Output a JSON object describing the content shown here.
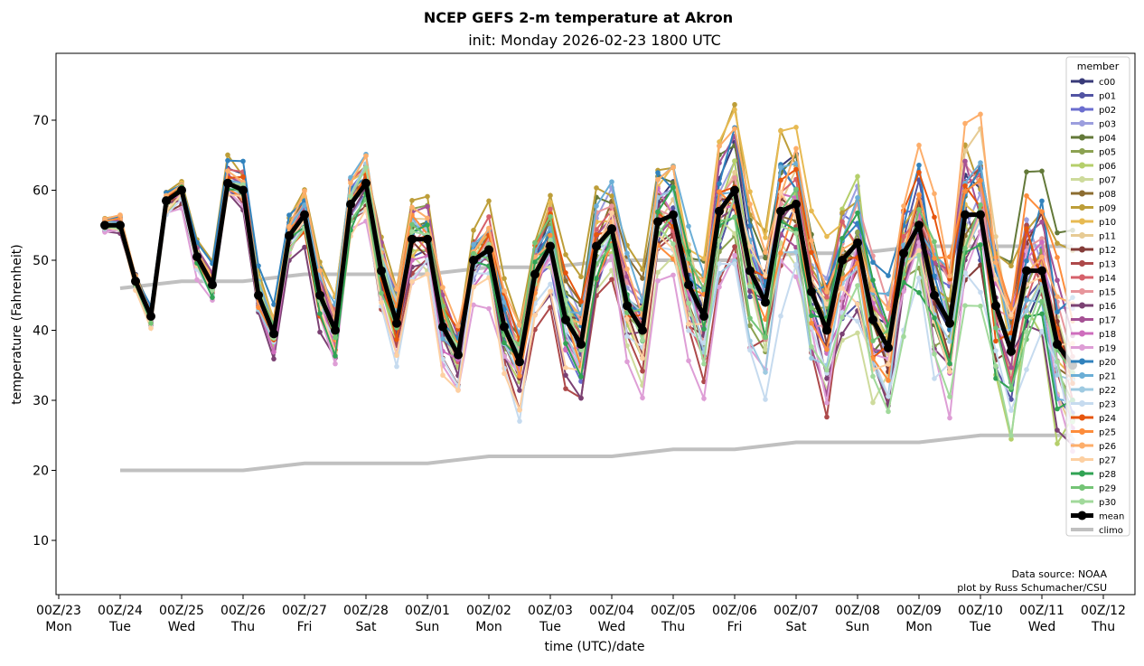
{
  "chart_data": {
    "type": "line",
    "title": "NCEP GEFS 2-m temperature at Akron",
    "subtitle": "init: Monday 2026-02-23 1800 UTC",
    "xlabel": "time (UTC)/date",
    "ylabel": "temperature (Fahrenheit)",
    "ylim": [
      2,
      79.5
    ],
    "xlim_hours": [
      -2,
      464
    ],
    "x_units": "hours since 00Z/23",
    "yticks": [
      10,
      20,
      30,
      40,
      50,
      60,
      70
    ],
    "xticks": [
      {
        "hour": 0,
        "label": "00Z/23",
        "day": "Mon"
      },
      {
        "hour": 24,
        "label": "00Z/24",
        "day": "Tue"
      },
      {
        "hour": 48,
        "label": "00Z/25",
        "day": "Wed"
      },
      {
        "hour": 72,
        "label": "00Z/26",
        "day": "Thu"
      },
      {
        "hour": 96,
        "label": "00Z/27",
        "day": "Fri"
      },
      {
        "hour": 120,
        "label": "00Z/28",
        "day": "Sat"
      },
      {
        "hour": 144,
        "label": "00Z/01",
        "day": "Sun"
      },
      {
        "hour": 168,
        "label": "00Z/02",
        "day": "Mon"
      },
      {
        "hour": 192,
        "label": "00Z/03",
        "day": "Tue"
      },
      {
        "hour": 216,
        "label": "00Z/04",
        "day": "Wed"
      },
      {
        "hour": 240,
        "label": "00Z/05",
        "day": "Thu"
      },
      {
        "hour": 264,
        "label": "00Z/06",
        "day": "Fri"
      },
      {
        "hour": 288,
        "label": "00Z/07",
        "day": "Sat"
      },
      {
        "hour": 312,
        "label": "00Z/08",
        "day": "Sun"
      },
      {
        "hour": 336,
        "label": "00Z/09",
        "day": "Mon"
      },
      {
        "hour": 360,
        "label": "00Z/10",
        "day": "Tue"
      },
      {
        "hour": 384,
        "label": "00Z/11",
        "day": "Wed"
      },
      {
        "hour": 408,
        "label": "00Z/12",
        "day": "Thu"
      }
    ],
    "x_start_hour": 18,
    "x_step_hours": 6,
    "legend": {
      "title": "member",
      "placement": "right"
    },
    "members": [
      {
        "name": "c00",
        "color": "#393b79"
      },
      {
        "name": "p01",
        "color": "#5254a3"
      },
      {
        "name": "p02",
        "color": "#6b6ecf"
      },
      {
        "name": "p03",
        "color": "#9c9ede"
      },
      {
        "name": "p04",
        "color": "#637939"
      },
      {
        "name": "p05",
        "color": "#8ca252"
      },
      {
        "name": "p06",
        "color": "#b5cf6b"
      },
      {
        "name": "p07",
        "color": "#cedb9c"
      },
      {
        "name": "p08",
        "color": "#8c6d31"
      },
      {
        "name": "p09",
        "color": "#bd9e39"
      },
      {
        "name": "p10",
        "color": "#e7ba52"
      },
      {
        "name": "p11",
        "color": "#e7cb94"
      },
      {
        "name": "p12",
        "color": "#843c39"
      },
      {
        "name": "p13",
        "color": "#ad494a"
      },
      {
        "name": "p14",
        "color": "#d6616b"
      },
      {
        "name": "p15",
        "color": "#e7969c"
      },
      {
        "name": "p16",
        "color": "#7b4173"
      },
      {
        "name": "p17",
        "color": "#a55194"
      },
      {
        "name": "p18",
        "color": "#ce6dbd"
      },
      {
        "name": "p19",
        "color": "#de9ed6"
      },
      {
        "name": "p20",
        "color": "#3182bd"
      },
      {
        "name": "p21",
        "color": "#6baed6"
      },
      {
        "name": "p22",
        "color": "#9ecae1"
      },
      {
        "name": "p23",
        "color": "#c6dbef"
      },
      {
        "name": "p24",
        "color": "#e6550d"
      },
      {
        "name": "p25",
        "color": "#fd8d3c"
      },
      {
        "name": "p26",
        "color": "#fdae6b"
      },
      {
        "name": "p27",
        "color": "#fdd0a2"
      },
      {
        "name": "p28",
        "color": "#31a354"
      },
      {
        "name": "p29",
        "color": "#74c476"
      },
      {
        "name": "p30",
        "color": "#a1d99b"
      }
    ],
    "mean": {
      "name": "mean",
      "color": "#000000",
      "values": [
        55,
        55,
        47,
        42,
        58.5,
        60,
        50.5,
        46.5,
        61,
        60,
        45,
        39.5,
        53.5,
        56.5,
        45,
        40,
        58,
        61,
        48.5,
        41,
        53,
        53,
        40.5,
        36.5,
        50,
        51.5,
        40.5,
        35.5,
        48,
        52,
        41.5,
        38,
        52,
        54.5,
        43.5,
        40,
        55.5,
        56.5,
        46.5,
        42,
        57,
        60,
        48.5,
        44,
        57,
        58,
        45.5,
        40,
        50,
        52.5,
        41.5,
        37.5,
        51,
        55,
        45,
        41,
        56.5,
        56.5,
        43.5,
        37,
        48.5,
        48.5,
        38,
        35
      ]
    },
    "climo_high": {
      "name": "climo",
      "color": "#c0c0c0",
      "hours": [
        24,
        48,
        72,
        96,
        120,
        144,
        168,
        192,
        216,
        240,
        264,
        288,
        312,
        336,
        360,
        384,
        396
      ],
      "values": [
        46,
        47,
        47,
        48,
        48,
        48,
        49,
        49,
        50,
        50,
        50,
        51,
        51,
        52,
        52,
        52,
        52
      ]
    },
    "climo_low": {
      "name": "climo",
      "color": "#c0c0c0",
      "hours": [
        24,
        48,
        72,
        96,
        120,
        144,
        168,
        192,
        216,
        240,
        264,
        288,
        312,
        336,
        360,
        384,
        396
      ],
      "values": [
        20,
        20,
        20,
        21,
        21,
        21,
        22,
        22,
        22,
        23,
        23,
        24,
        24,
        24,
        25,
        25,
        25
      ]
    },
    "member_spread": {
      "description": "approximate per-member deviation (°F) from the ensemble mean, grows with lead time",
      "initial": 1.0,
      "final": 14.0
    },
    "annotations": [
      "Data source: NOAA",
      "plot by Russ Schumacher/CSU"
    ]
  }
}
